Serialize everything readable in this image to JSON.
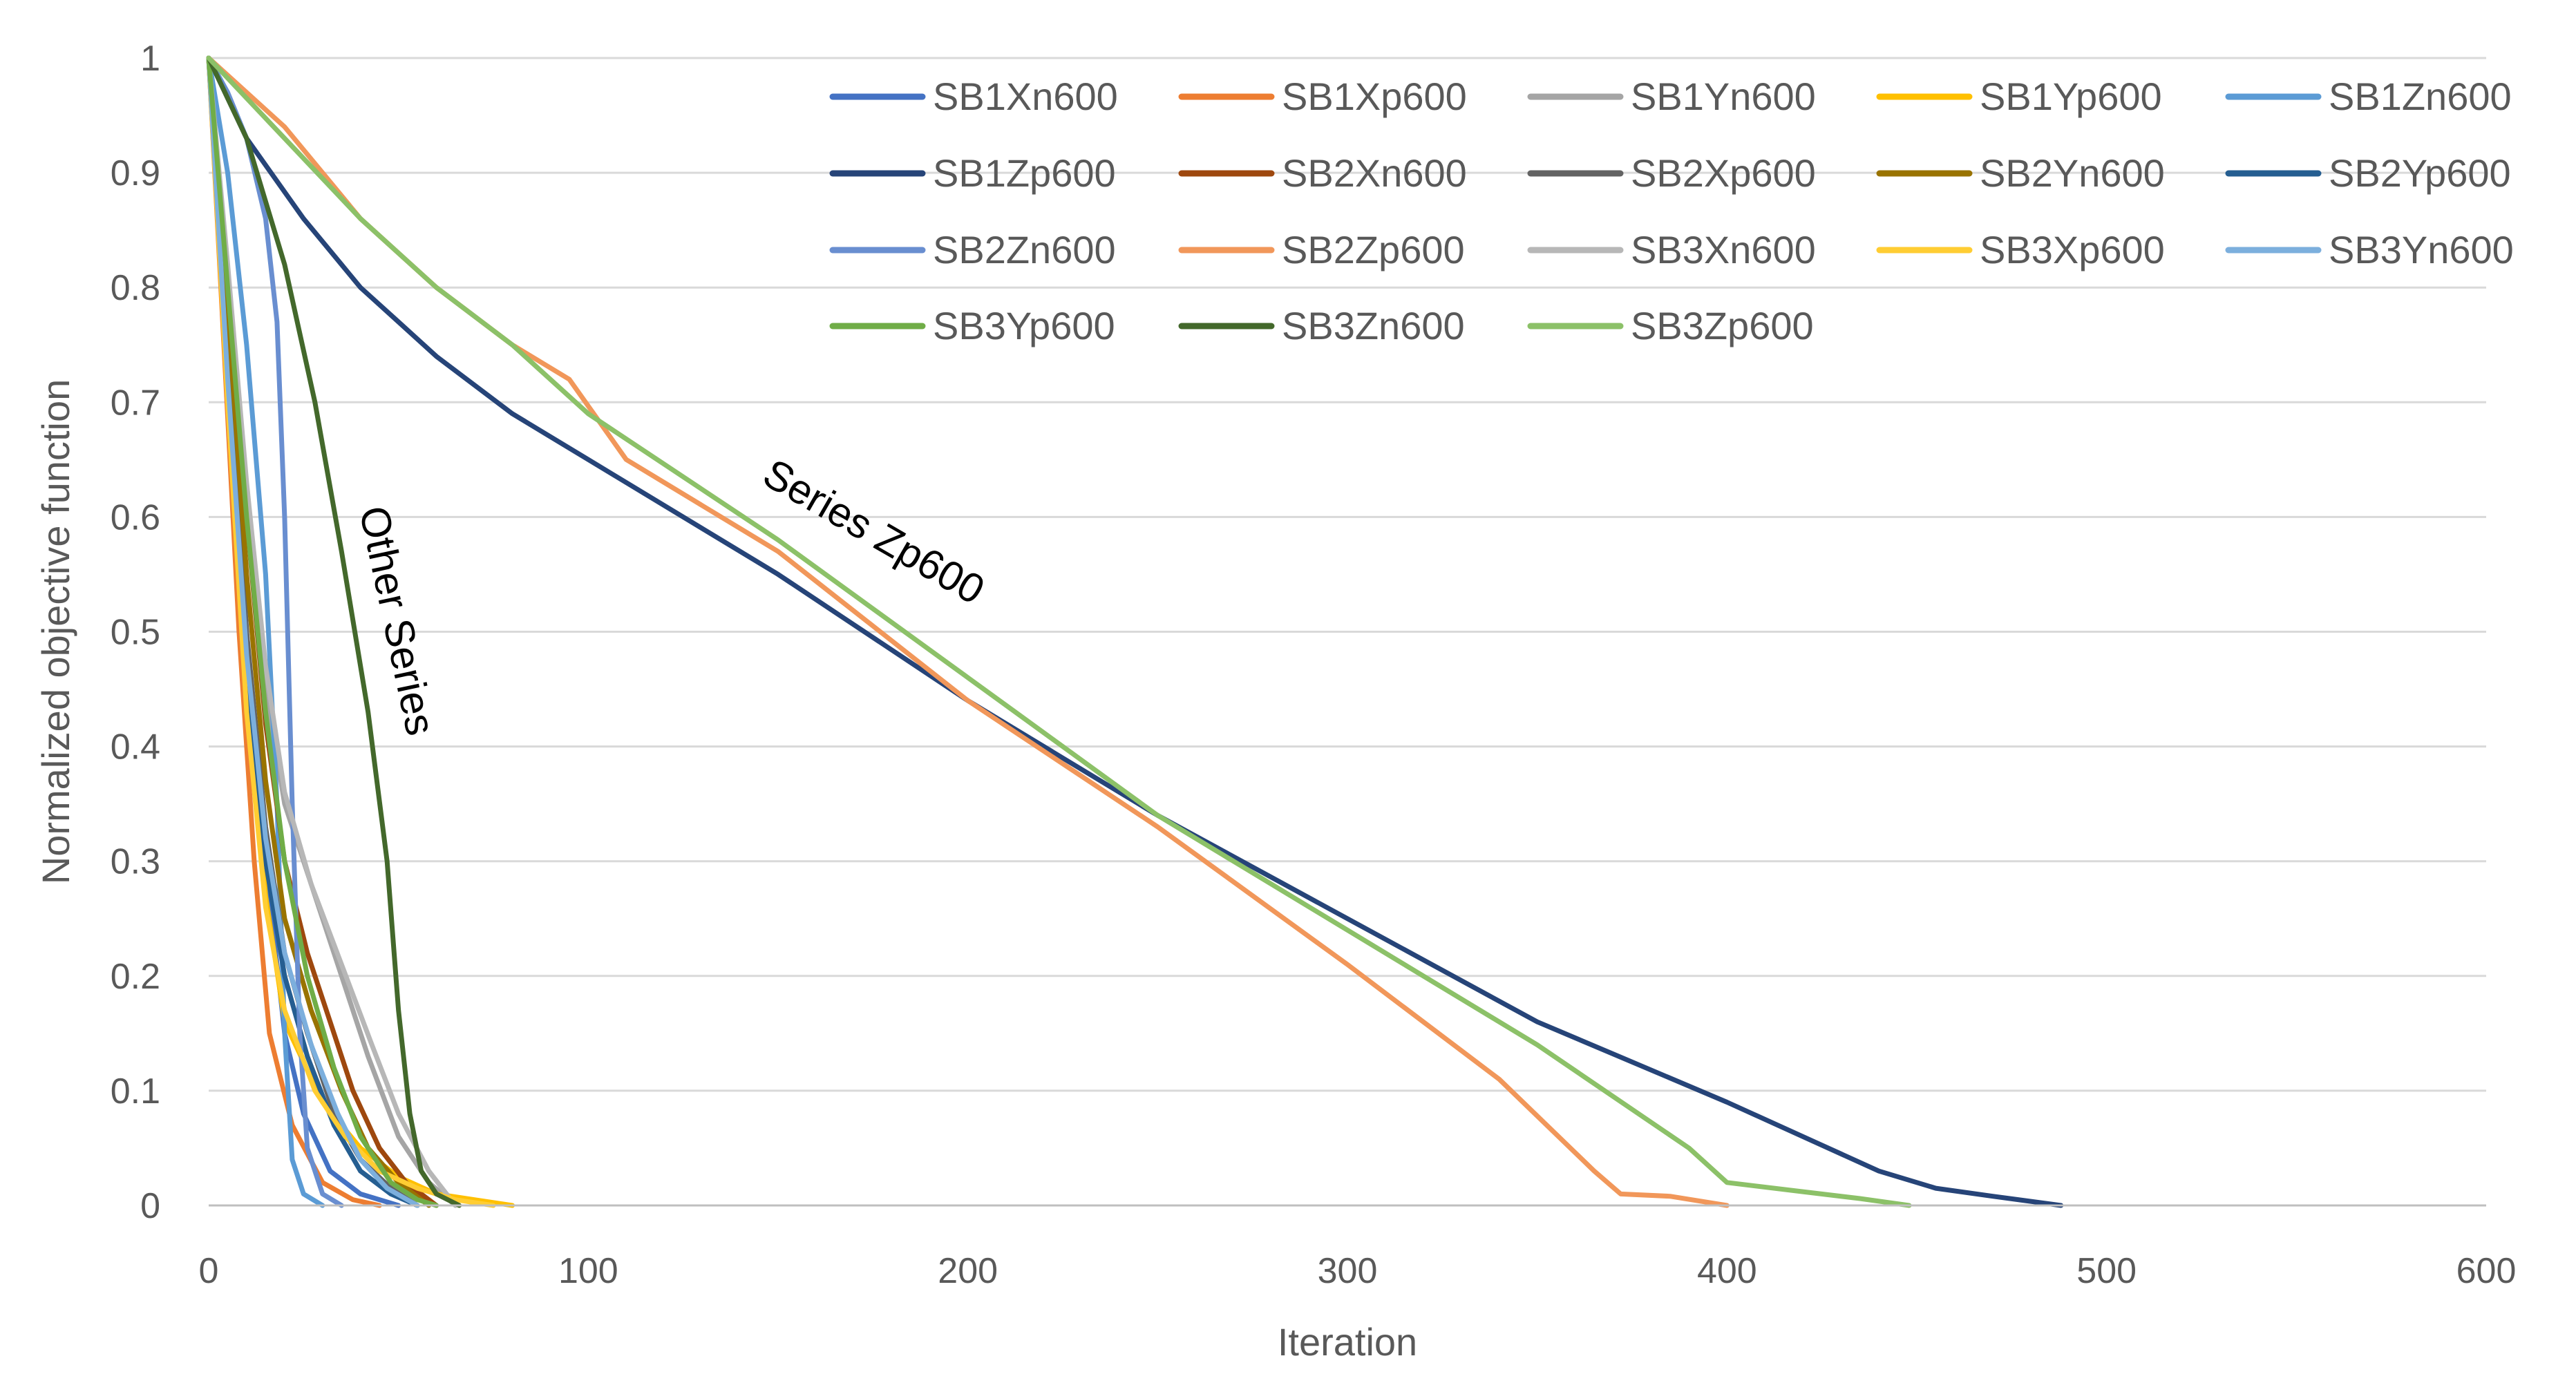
{
  "chart_data": {
    "type": "line",
    "title": "",
    "xlabel": "Iteration",
    "ylabel": "Normalized objective function",
    "xlim": [
      0,
      600
    ],
    "ylim": [
      0,
      1
    ],
    "xticks": [
      0,
      100,
      200,
      300,
      400,
      500,
      600
    ],
    "yticks": [
      0,
      0.1,
      0.2,
      0.3,
      0.4,
      0.5,
      0.6,
      0.7,
      0.8,
      0.9,
      1
    ],
    "xtick_labels": [
      "0",
      "100",
      "200",
      "300",
      "400",
      "500",
      "600"
    ],
    "ytick_labels": [
      "0",
      "0.1",
      "0.2",
      "0.3",
      "0.4",
      "0.5",
      "0.6",
      "0.7",
      "0.8",
      "0.9",
      "1"
    ],
    "grid": "horizontal",
    "legend": "top-right",
    "annotations": [
      {
        "text": "Other Series",
        "x": 50,
        "y": 0.57
      },
      {
        "text": "Series Zp600",
        "x": 180,
        "y": 0.6
      }
    ],
    "series": [
      {
        "name": "SB1Xn600",
        "color": "#4472C4",
        "points": [
          [
            0,
            1
          ],
          [
            5,
            0.75
          ],
          [
            10,
            0.5
          ],
          [
            15,
            0.3
          ],
          [
            20,
            0.15
          ],
          [
            25,
            0.08
          ],
          [
            32,
            0.03
          ],
          [
            40,
            0.01
          ],
          [
            50,
            0
          ]
        ]
      },
      {
        "name": "SB1Xp600",
        "color": "#ED7D31",
        "points": [
          [
            0,
            1
          ],
          [
            4,
            0.75
          ],
          [
            8,
            0.5
          ],
          [
            12,
            0.3
          ],
          [
            16,
            0.15
          ],
          [
            22,
            0.07
          ],
          [
            30,
            0.02
          ],
          [
            38,
            0.005
          ],
          [
            45,
            0
          ]
        ]
      },
      {
        "name": "SB1Yn600",
        "color": "#A5A5A5",
        "points": [
          [
            0,
            1
          ],
          [
            5,
            0.8
          ],
          [
            10,
            0.6
          ],
          [
            15,
            0.45
          ],
          [
            20,
            0.35
          ],
          [
            28,
            0.27
          ],
          [
            35,
            0.2
          ],
          [
            42,
            0.13
          ],
          [
            50,
            0.06
          ],
          [
            58,
            0.02
          ],
          [
            65,
            0
          ]
        ]
      },
      {
        "name": "SB1Yp600",
        "color": "#FFC000",
        "points": [
          [
            0,
            1
          ],
          [
            5,
            0.7
          ],
          [
            10,
            0.45
          ],
          [
            15,
            0.27
          ],
          [
            20,
            0.16
          ],
          [
            30,
            0.09
          ],
          [
            40,
            0.05
          ],
          [
            50,
            0.025
          ],
          [
            60,
            0.01
          ],
          [
            70,
            0.005
          ],
          [
            80,
            0
          ]
        ]
      },
      {
        "name": "SB1Zn600",
        "color": "#5B9BD5",
        "points": [
          [
            0,
            1
          ],
          [
            5,
            0.9
          ],
          [
            10,
            0.75
          ],
          [
            15,
            0.55
          ],
          [
            18,
            0.35
          ],
          [
            20,
            0.15
          ],
          [
            22,
            0.04
          ],
          [
            25,
            0.01
          ],
          [
            30,
            0
          ]
        ]
      },
      {
        "name": "SB1Zp600",
        "color": "#264478",
        "points": [
          [
            0,
            1
          ],
          [
            10,
            0.93
          ],
          [
            25,
            0.86
          ],
          [
            35,
            0.82
          ],
          [
            40,
            0.8
          ],
          [
            50,
            0.77
          ],
          [
            60,
            0.74
          ],
          [
            80,
            0.69
          ],
          [
            100,
            0.65
          ],
          [
            150,
            0.55
          ],
          [
            200,
            0.44
          ],
          [
            250,
            0.34
          ],
          [
            300,
            0.25
          ],
          [
            350,
            0.16
          ],
          [
            400,
            0.09
          ],
          [
            440,
            0.03
          ],
          [
            455,
            0.015
          ],
          [
            470,
            0.008
          ],
          [
            488,
            0
          ]
        ]
      },
      {
        "name": "SB2Xn600",
        "color": "#9E480E",
        "points": [
          [
            0,
            1
          ],
          [
            5,
            0.8
          ],
          [
            10,
            0.6
          ],
          [
            15,
            0.42
          ],
          [
            20,
            0.3
          ],
          [
            26,
            0.22
          ],
          [
            32,
            0.16
          ],
          [
            38,
            0.1
          ],
          [
            45,
            0.05
          ],
          [
            52,
            0.02
          ],
          [
            60,
            0
          ]
        ]
      },
      {
        "name": "SB2Xp600",
        "color": "#636363",
        "points": [
          [
            0,
            1
          ],
          [
            5,
            0.75
          ],
          [
            10,
            0.5
          ],
          [
            15,
            0.33
          ],
          [
            20,
            0.22
          ],
          [
            26,
            0.15
          ],
          [
            33,
            0.08
          ],
          [
            40,
            0.04
          ],
          [
            48,
            0.015
          ],
          [
            55,
            0
          ]
        ]
      },
      {
        "name": "SB2Yn600",
        "color": "#997300",
        "points": [
          [
            0,
            1
          ],
          [
            5,
            0.78
          ],
          [
            10,
            0.55
          ],
          [
            15,
            0.37
          ],
          [
            20,
            0.25
          ],
          [
            27,
            0.17
          ],
          [
            35,
            0.1
          ],
          [
            42,
            0.05
          ],
          [
            50,
            0.02
          ],
          [
            58,
            0
          ]
        ]
      },
      {
        "name": "SB2Yp600",
        "color": "#255E91",
        "points": [
          [
            0,
            1
          ],
          [
            5,
            0.72
          ],
          [
            10,
            0.47
          ],
          [
            15,
            0.3
          ],
          [
            20,
            0.2
          ],
          [
            26,
            0.13
          ],
          [
            33,
            0.07
          ],
          [
            40,
            0.03
          ],
          [
            48,
            0.01
          ],
          [
            55,
            0
          ]
        ]
      },
      {
        "name": "SB2Zn600",
        "color": "#698ED0",
        "points": [
          [
            0,
            1
          ],
          [
            5,
            0.97
          ],
          [
            10,
            0.93
          ],
          [
            15,
            0.86
          ],
          [
            18,
            0.77
          ],
          [
            20,
            0.6
          ],
          [
            22,
            0.35
          ],
          [
            24,
            0.15
          ],
          [
            26,
            0.05
          ],
          [
            30,
            0.01
          ],
          [
            35,
            0
          ]
        ]
      },
      {
        "name": "SB2Zp600",
        "color": "#F1975A",
        "points": [
          [
            0,
            1
          ],
          [
            20,
            0.94
          ],
          [
            40,
            0.86
          ],
          [
            60,
            0.8
          ],
          [
            80,
            0.75
          ],
          [
            95,
            0.72
          ],
          [
            110,
            0.65
          ],
          [
            150,
            0.57
          ],
          [
            200,
            0.44
          ],
          [
            250,
            0.33
          ],
          [
            300,
            0.21
          ],
          [
            340,
            0.11
          ],
          [
            365,
            0.03
          ],
          [
            372,
            0.01
          ],
          [
            385,
            0.008
          ],
          [
            400,
            0
          ]
        ]
      },
      {
        "name": "SB3Xn600",
        "color": "#B7B7B7",
        "points": [
          [
            0,
            1
          ],
          [
            5,
            0.82
          ],
          [
            10,
            0.63
          ],
          [
            15,
            0.47
          ],
          [
            20,
            0.36
          ],
          [
            27,
            0.28
          ],
          [
            35,
            0.21
          ],
          [
            43,
            0.14
          ],
          [
            50,
            0.08
          ],
          [
            58,
            0.03
          ],
          [
            65,
            0
          ]
        ]
      },
      {
        "name": "SB3Xp600",
        "color": "#FFCD33",
        "points": [
          [
            0,
            1
          ],
          [
            5,
            0.7
          ],
          [
            10,
            0.43
          ],
          [
            15,
            0.26
          ],
          [
            20,
            0.17
          ],
          [
            28,
            0.1
          ],
          [
            36,
            0.06
          ],
          [
            45,
            0.03
          ],
          [
            55,
            0.015
          ],
          [
            65,
            0.005
          ],
          [
            75,
            0
          ]
        ]
      },
      {
        "name": "SB3Yn600",
        "color": "#7CAFDD",
        "points": [
          [
            0,
            1
          ],
          [
            5,
            0.72
          ],
          [
            10,
            0.48
          ],
          [
            15,
            0.32
          ],
          [
            20,
            0.22
          ],
          [
            27,
            0.14
          ],
          [
            34,
            0.08
          ],
          [
            40,
            0.04
          ],
          [
            47,
            0.015
          ],
          [
            55,
            0
          ]
        ]
      },
      {
        "name": "SB3Yp600",
        "color": "#70AD47",
        "points": [
          [
            0,
            1
          ],
          [
            5,
            0.8
          ],
          [
            10,
            0.6
          ],
          [
            15,
            0.43
          ],
          [
            20,
            0.3
          ],
          [
            26,
            0.2
          ],
          [
            33,
            0.12
          ],
          [
            40,
            0.06
          ],
          [
            48,
            0.02
          ],
          [
            55,
            0.005
          ],
          [
            60,
            0
          ]
        ]
      },
      {
        "name": "SB3Zn600",
        "color": "#43682B",
        "points": [
          [
            0,
            1
          ],
          [
            10,
            0.93
          ],
          [
            20,
            0.82
          ],
          [
            28,
            0.7
          ],
          [
            35,
            0.57
          ],
          [
            42,
            0.43
          ],
          [
            47,
            0.3
          ],
          [
            50,
            0.17
          ],
          [
            53,
            0.08
          ],
          [
            56,
            0.03
          ],
          [
            60,
            0.01
          ],
          [
            66,
            0
          ]
        ]
      },
      {
        "name": "SB3Zp600",
        "color": "#8CC168",
        "points": [
          [
            0,
            1
          ],
          [
            20,
            0.93
          ],
          [
            40,
            0.86
          ],
          [
            60,
            0.8
          ],
          [
            80,
            0.75
          ],
          [
            100,
            0.69
          ],
          [
            150,
            0.58
          ],
          [
            200,
            0.46
          ],
          [
            250,
            0.34
          ],
          [
            300,
            0.24
          ],
          [
            350,
            0.14
          ],
          [
            390,
            0.05
          ],
          [
            400,
            0.02
          ],
          [
            420,
            0.012
          ],
          [
            435,
            0.006
          ],
          [
            448,
            0
          ]
        ]
      }
    ]
  }
}
